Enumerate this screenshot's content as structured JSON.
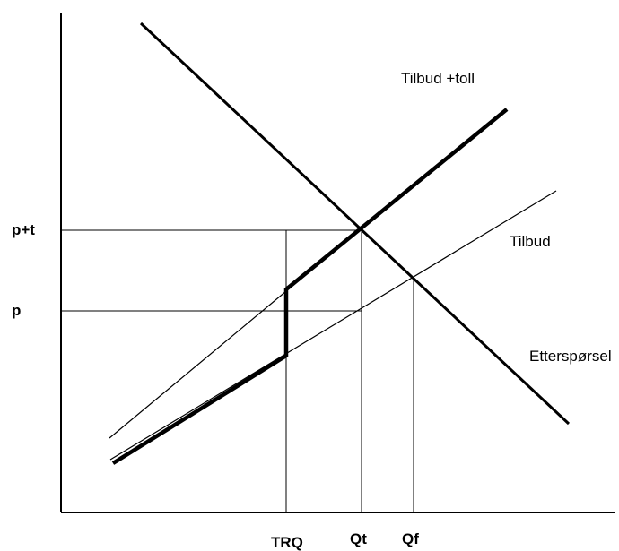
{
  "labels": {
    "supply_plus_tariff": "Tilbud +toll",
    "supply": "Tilbud",
    "demand": "Etterspørsel",
    "price_tariff": "p+t",
    "price": "p",
    "trq": "TRQ",
    "qt": "Qt",
    "qf": "Qf"
  },
  "colors": {
    "line": "#000000",
    "background": "#ffffff"
  }
}
